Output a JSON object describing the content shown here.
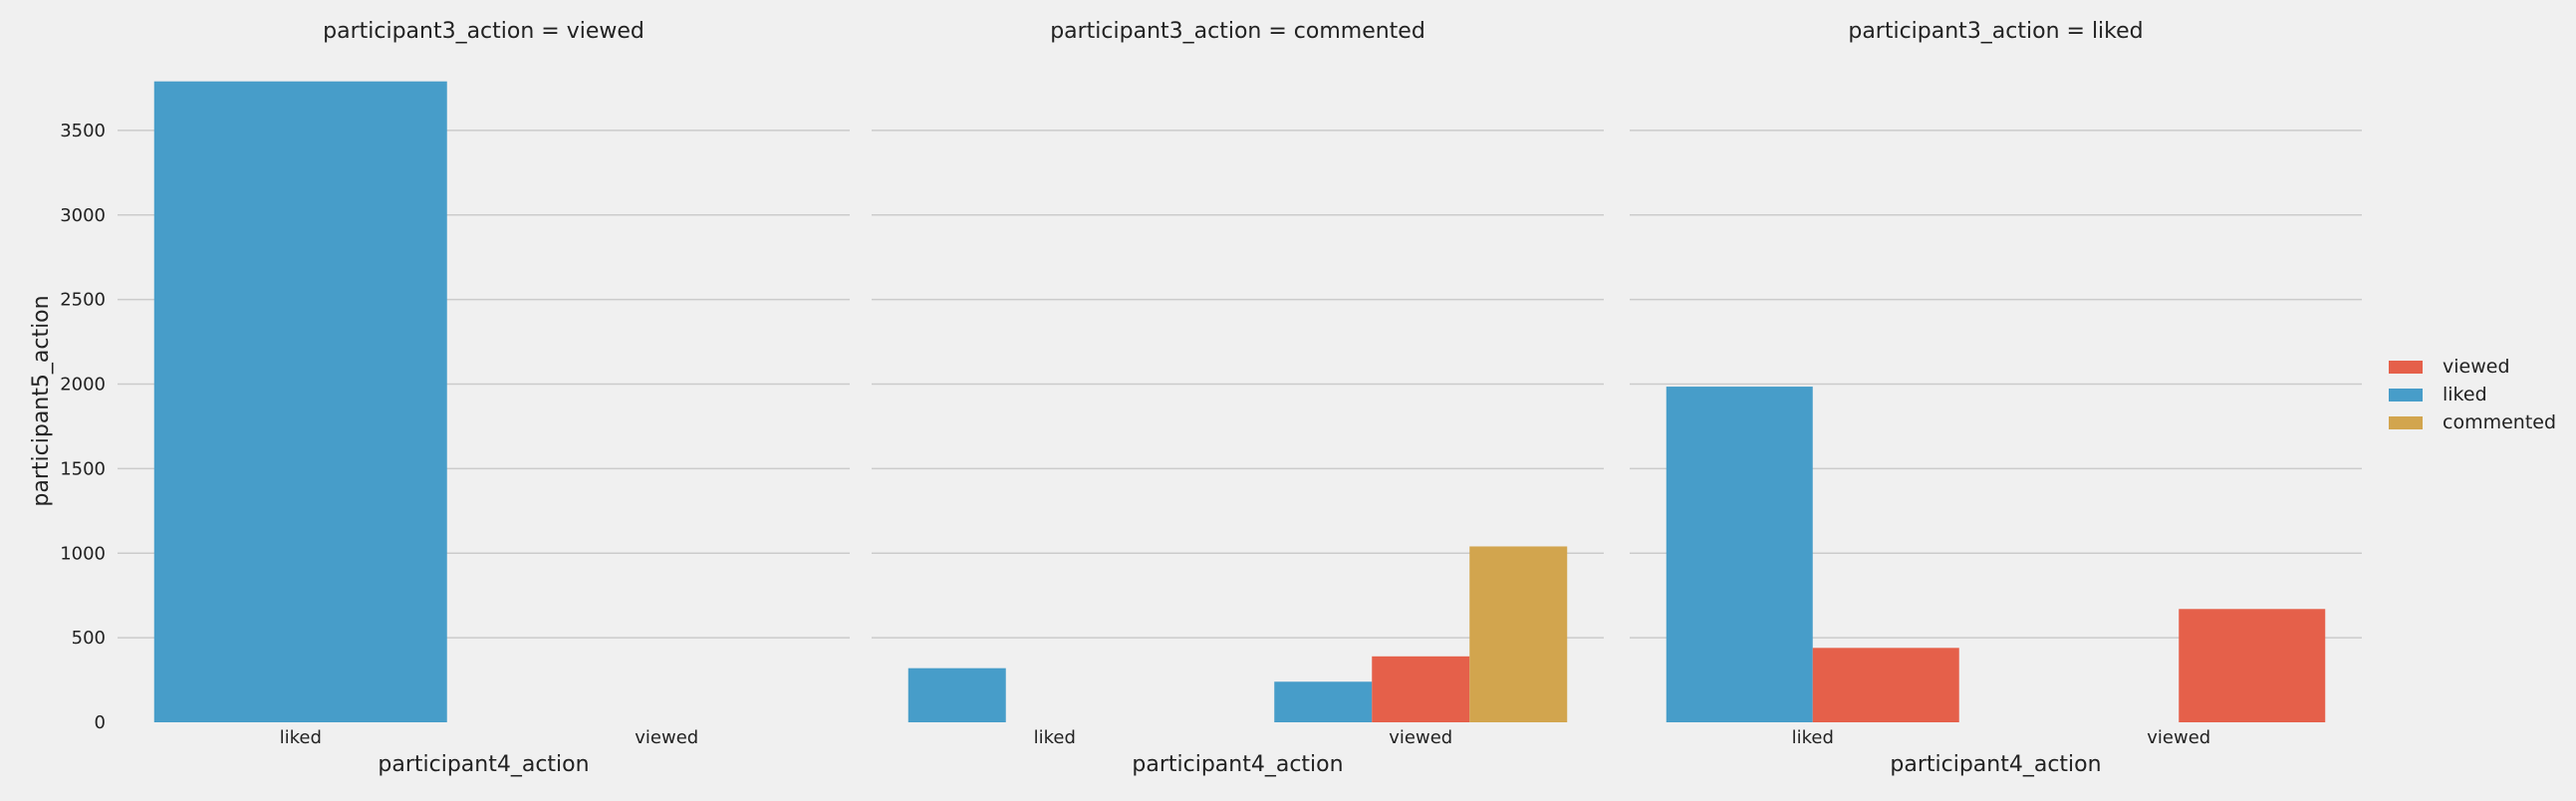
{
  "chart_data": {
    "type": "bar",
    "ylabel": "participant5_action",
    "ylim": [
      0,
      3800
    ],
    "yticks": [
      "0",
      "500",
      "1000",
      "1500",
      "2000",
      "2500",
      "3000",
      "3500"
    ],
    "grid": true,
    "legend": {
      "placement": "right",
      "entries": [
        {
          "name": "viewed",
          "color": "#e5604a"
        },
        {
          "name": "liked",
          "color": "#479dc9"
        },
        {
          "name": "commented",
          "color": "#d2a54e"
        }
      ]
    },
    "panels": [
      {
        "title": "participant3_action = viewed",
        "xlabel": "participant4_action",
        "categories": [
          "liked",
          "viewed"
        ],
        "series": [
          {
            "name": "liked",
            "values": [
              3790,
              null
            ]
          }
        ]
      },
      {
        "title": "participant3_action = commented",
        "xlabel": "participant4_action",
        "categories": [
          "liked",
          "viewed"
        ],
        "series": [
          {
            "name": "liked",
            "values": [
              320,
              240
            ]
          },
          {
            "name": "viewed",
            "values": [
              null,
              390
            ]
          },
          {
            "name": "commented",
            "values": [
              null,
              1040
            ]
          }
        ]
      },
      {
        "title": "participant3_action = liked",
        "xlabel": "participant4_action",
        "categories": [
          "liked",
          "viewed"
        ],
        "series": [
          {
            "name": "liked",
            "values": [
              1985,
              null
            ]
          },
          {
            "name": "viewed",
            "values": [
              440,
              670
            ]
          }
        ]
      }
    ]
  }
}
